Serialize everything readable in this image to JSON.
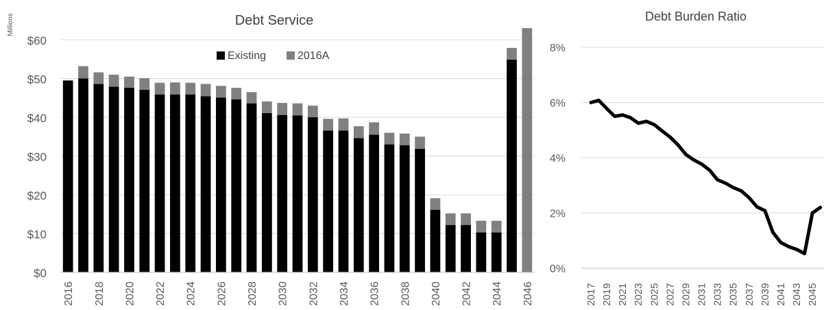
{
  "chart_data": [
    {
      "type": "bar",
      "stacked": true,
      "title": "Debt Service",
      "units_label": "Millions",
      "ylim": [
        0,
        60
      ],
      "yticks": [
        "$0",
        "$10",
        "$20",
        "$30",
        "$40",
        "$50",
        "$60"
      ],
      "grid": true,
      "legend_position": "top-center",
      "categories": [
        2016,
        2017,
        2018,
        2019,
        2020,
        2021,
        2022,
        2023,
        2024,
        2025,
        2026,
        2027,
        2028,
        2029,
        2030,
        2031,
        2032,
        2033,
        2034,
        2035,
        2036,
        2037,
        2038,
        2039,
        2040,
        2041,
        2042,
        2043,
        2044,
        2045,
        2046
      ],
      "series": [
        {
          "name": "Existing",
          "color": "#000000",
          "values": [
            49.5,
            50.0,
            48.6,
            47.9,
            47.6,
            47.1,
            45.9,
            45.9,
            45.9,
            45.4,
            45.1,
            44.6,
            43.6,
            41.1,
            40.6,
            40.5,
            40.0,
            36.6,
            36.6,
            34.6,
            35.5,
            33.0,
            32.8,
            31.9,
            16.1,
            12.2,
            12.2,
            10.3,
            10.3,
            54.9,
            0
          ]
        },
        {
          "name": "2016A",
          "color": "#808080",
          "values": [
            0,
            3.2,
            3.0,
            3.1,
            2.9,
            3.0,
            3.0,
            3.1,
            3.0,
            3.2,
            3.0,
            3.0,
            2.9,
            3.0,
            3.1,
            3.1,
            3.0,
            3.0,
            3.1,
            3.1,
            3.2,
            3.0,
            3.0,
            3.1,
            3.0,
            3.0,
            3.0,
            3.0,
            3.0,
            3.0,
            63.0
          ]
        }
      ],
      "xtick_labels": [
        "2016",
        "2018",
        "2020",
        "2022",
        "2024",
        "2026",
        "2028",
        "2030",
        "2032",
        "2034",
        "2036",
        "2038",
        "2040",
        "2042",
        "2044",
        "2046"
      ]
    },
    {
      "type": "line",
      "title": "Debt Burden Ratio",
      "ylim": [
        0,
        8
      ],
      "yticks": [
        "0%",
        "2%",
        "4%",
        "6%",
        "8%"
      ],
      "grid": true,
      "color": "#000000",
      "x": [
        2017,
        2018,
        2019,
        2020,
        2021,
        2022,
        2023,
        2024,
        2025,
        2026,
        2027,
        2028,
        2029,
        2030,
        2031,
        2032,
        2033,
        2034,
        2035,
        2036,
        2037,
        2038,
        2039,
        2040,
        2041,
        2042,
        2043,
        2044,
        2045,
        2046
      ],
      "values": [
        6.0,
        6.08,
        5.78,
        5.5,
        5.55,
        5.45,
        5.25,
        5.32,
        5.2,
        4.97,
        4.75,
        4.47,
        4.12,
        3.92,
        3.77,
        3.55,
        3.2,
        3.08,
        2.92,
        2.8,
        2.55,
        2.22,
        2.08,
        1.3,
        0.93,
        0.78,
        0.68,
        0.53,
        2.0,
        2.2
      ],
      "xtick_labels": [
        "2017",
        "2019",
        "2021",
        "2023",
        "2025",
        "2027",
        "2029",
        "2031",
        "2033",
        "2035",
        "2037",
        "2039",
        "2041",
        "2043",
        "2045"
      ]
    }
  ]
}
